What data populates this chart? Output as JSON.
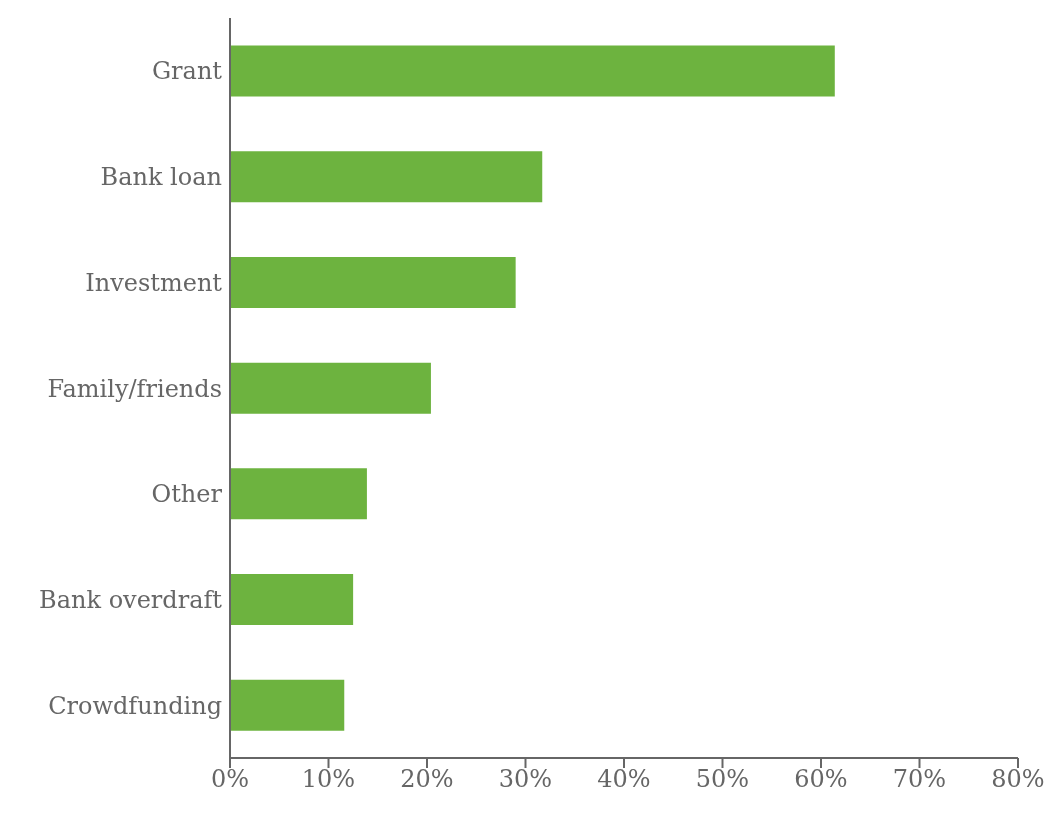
{
  "chart_data": {
    "type": "bar",
    "orientation": "horizontal",
    "categories": [
      "Grant",
      "Bank loan",
      "Investment",
      "Family/friends",
      "Other",
      "Bank overdraft",
      "Crowdfunding"
    ],
    "values": [
      61.4,
      31.7,
      29.0,
      20.4,
      13.9,
      12.5,
      11.6
    ],
    "color": "#6db33f",
    "xlim": [
      0,
      80
    ],
    "xticks": [
      {
        "value": 0,
        "label": "0%"
      },
      {
        "value": 10,
        "label": "10%"
      },
      {
        "value": 20,
        "label": "20%"
      },
      {
        "value": 30,
        "label": "30%"
      },
      {
        "value": 40,
        "label": "40%"
      },
      {
        "value": 50,
        "label": "50%"
      },
      {
        "value": 60,
        "label": "60%"
      },
      {
        "value": 70,
        "label": "70%"
      },
      {
        "value": 80,
        "label": "80%"
      }
    ],
    "grid": false,
    "legend": false
  }
}
